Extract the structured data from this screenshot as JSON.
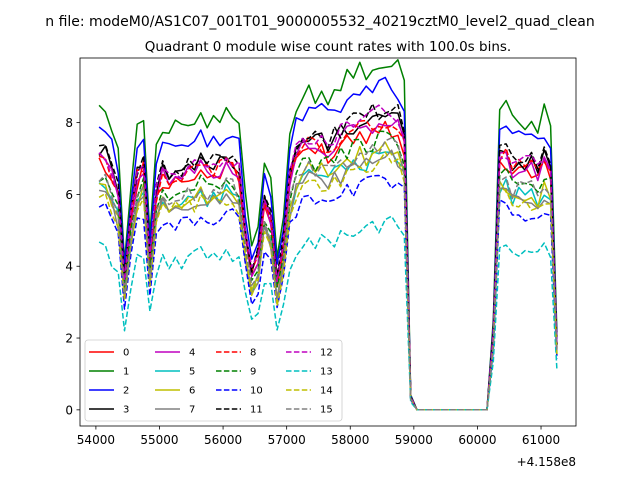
{
  "figure": {
    "suptitle": "n file: modeM0/AS1C07_001T01_9000005532_40219cztM0_level2_quad_clean",
    "title": "Quadrant 0 module wise count rates with 100.0s bins.",
    "x_offset_label": "+4.158e8"
  },
  "chart_data": {
    "type": "line",
    "xlim": [
      53750,
      61550
    ],
    "ylim": [
      -0.45,
      9.8
    ],
    "xticks": [
      54000,
      55000,
      56000,
      57000,
      58000,
      59000,
      60000,
      61000
    ],
    "xtick_labels": [
      "54000",
      "55000",
      "56000",
      "57000",
      "58000",
      "59000",
      "60000",
      "61000"
    ],
    "yticks": [
      0,
      2,
      4,
      6,
      8
    ],
    "ytick_labels": [
      "0",
      "2",
      "4",
      "6",
      "8"
    ],
    "grid": false,
    "legend": {
      "placement": "lower-left",
      "columns": 4
    },
    "x": [
      54050,
      54150,
      54250,
      54350,
      54450,
      54550,
      54650,
      54750,
      54850,
      54950,
      55050,
      55150,
      55250,
      55350,
      55450,
      55550,
      55650,
      55750,
      55850,
      55950,
      56050,
      56150,
      56250,
      56350,
      56450,
      56550,
      56650,
      56750,
      56850,
      56950,
      57050,
      57150,
      57250,
      57350,
      57450,
      57550,
      57650,
      57750,
      57850,
      57950,
      58050,
      58150,
      58250,
      58350,
      58450,
      58550,
      58650,
      58750,
      58850,
      58950,
      59050,
      59150,
      59250,
      59350,
      59450,
      59550,
      59650,
      59750,
      59850,
      59950,
      60050,
      60150,
      60250,
      60350,
      60450,
      60550,
      60650,
      60750,
      60850,
      60950,
      61050,
      61150,
      61250
    ],
    "base_profile": [
      1.0,
      0.99,
      0.93,
      0.86,
      0.5,
      0.75,
      0.92,
      0.97,
      0.58,
      0.85,
      0.93,
      0.91,
      0.93,
      0.92,
      0.95,
      0.94,
      0.96,
      0.94,
      0.95,
      0.96,
      0.98,
      0.97,
      0.93,
      0.7,
      0.54,
      0.6,
      0.82,
      0.75,
      0.5,
      0.65,
      0.9,
      1.0,
      1.04,
      1.06,
      1.04,
      1.05,
      1.03,
      1.05,
      1.07,
      1.09,
      1.1,
      1.12,
      1.11,
      1.13,
      1.14,
      1.15,
      1.14,
      1.13,
      1.06,
      0.05,
      0,
      0,
      0,
      0,
      0,
      0,
      0,
      0,
      0,
      0,
      0,
      0,
      0.3,
      1.0,
      1.0,
      0.95,
      0.97,
      0.95,
      0.96,
      0.93,
      0.98,
      0.95,
      0.25
    ],
    "series": [
      {
        "name": "0",
        "color": "#ff0000",
        "dash": "solid",
        "level": 6.9
      },
      {
        "name": "1",
        "color": "#008000",
        "dash": "solid",
        "level": 8.45
      },
      {
        "name": "2",
        "color": "#0000ff",
        "dash": "solid",
        "level": 7.9
      },
      {
        "name": "3",
        "color": "#000000",
        "dash": "solid",
        "level": 7.2
      },
      {
        "name": "4",
        "color": "#bf00bf",
        "dash": "solid",
        "level": 7.0
      },
      {
        "name": "5",
        "color": "#00bfbf",
        "dash": "solid",
        "level": 6.2
      },
      {
        "name": "6",
        "color": "#bfbf00",
        "dash": "solid",
        "level": 6.3
      },
      {
        "name": "7",
        "color": "#808080",
        "dash": "solid",
        "level": 6.1
      },
      {
        "name": "8",
        "color": "#ff0000",
        "dash": "dashed",
        "level": 7.05
      },
      {
        "name": "9",
        "color": "#008000",
        "dash": "dashed",
        "level": 6.6
      },
      {
        "name": "10",
        "color": "#0000ff",
        "dash": "dashed",
        "level": 5.6
      },
      {
        "name": "11",
        "color": "#000000",
        "dash": "dashed",
        "level": 7.3
      },
      {
        "name": "12",
        "color": "#bf00bf",
        "dash": "dashed",
        "level": 7.2
      },
      {
        "name": "13",
        "color": "#00bfbf",
        "dash": "dashed",
        "level": 4.5
      },
      {
        "name": "14",
        "color": "#bfbf00",
        "dash": "dashed",
        "level": 6.0
      },
      {
        "name": "15",
        "color": "#808080",
        "dash": "dashed",
        "level": 6.4
      }
    ]
  }
}
